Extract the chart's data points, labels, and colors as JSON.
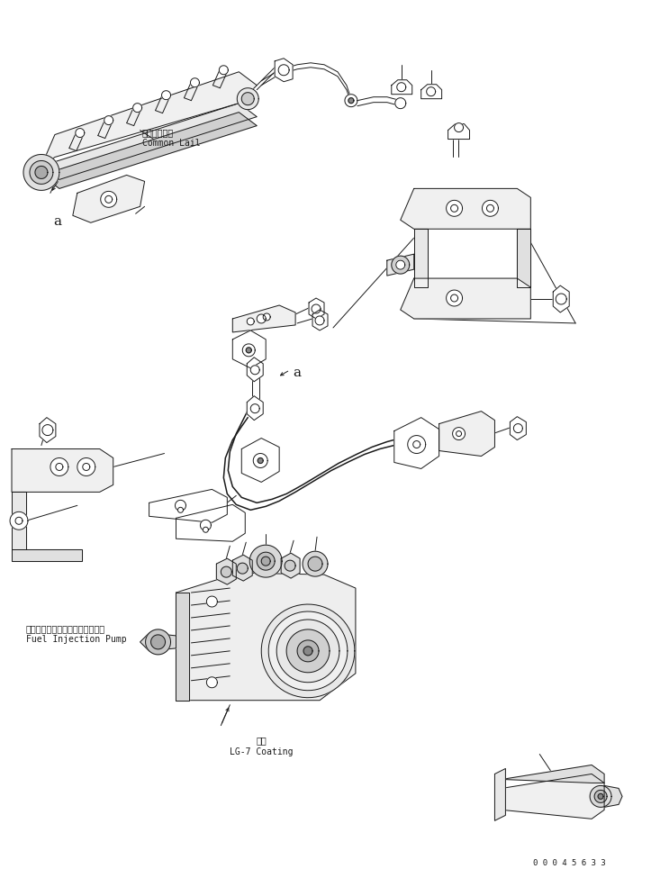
{
  "bg_color": "#ffffff",
  "line_color": "#1a1a1a",
  "lw": 0.7,
  "labels": {
    "common_rail_jp": "コモンレール",
    "common_rail_en": "Common Lail",
    "fuel_pump_jp": "フェエルインジェクションポンプ",
    "fuel_pump_en": "Fuel Injection Pump",
    "coating_jp": "塗布",
    "coating_en": "LG-7 Coating",
    "part_number": "0 0 0 4 5 6 3 3"
  },
  "fs_label": 7.0,
  "fs_part": 6.5,
  "fs_a": 11
}
